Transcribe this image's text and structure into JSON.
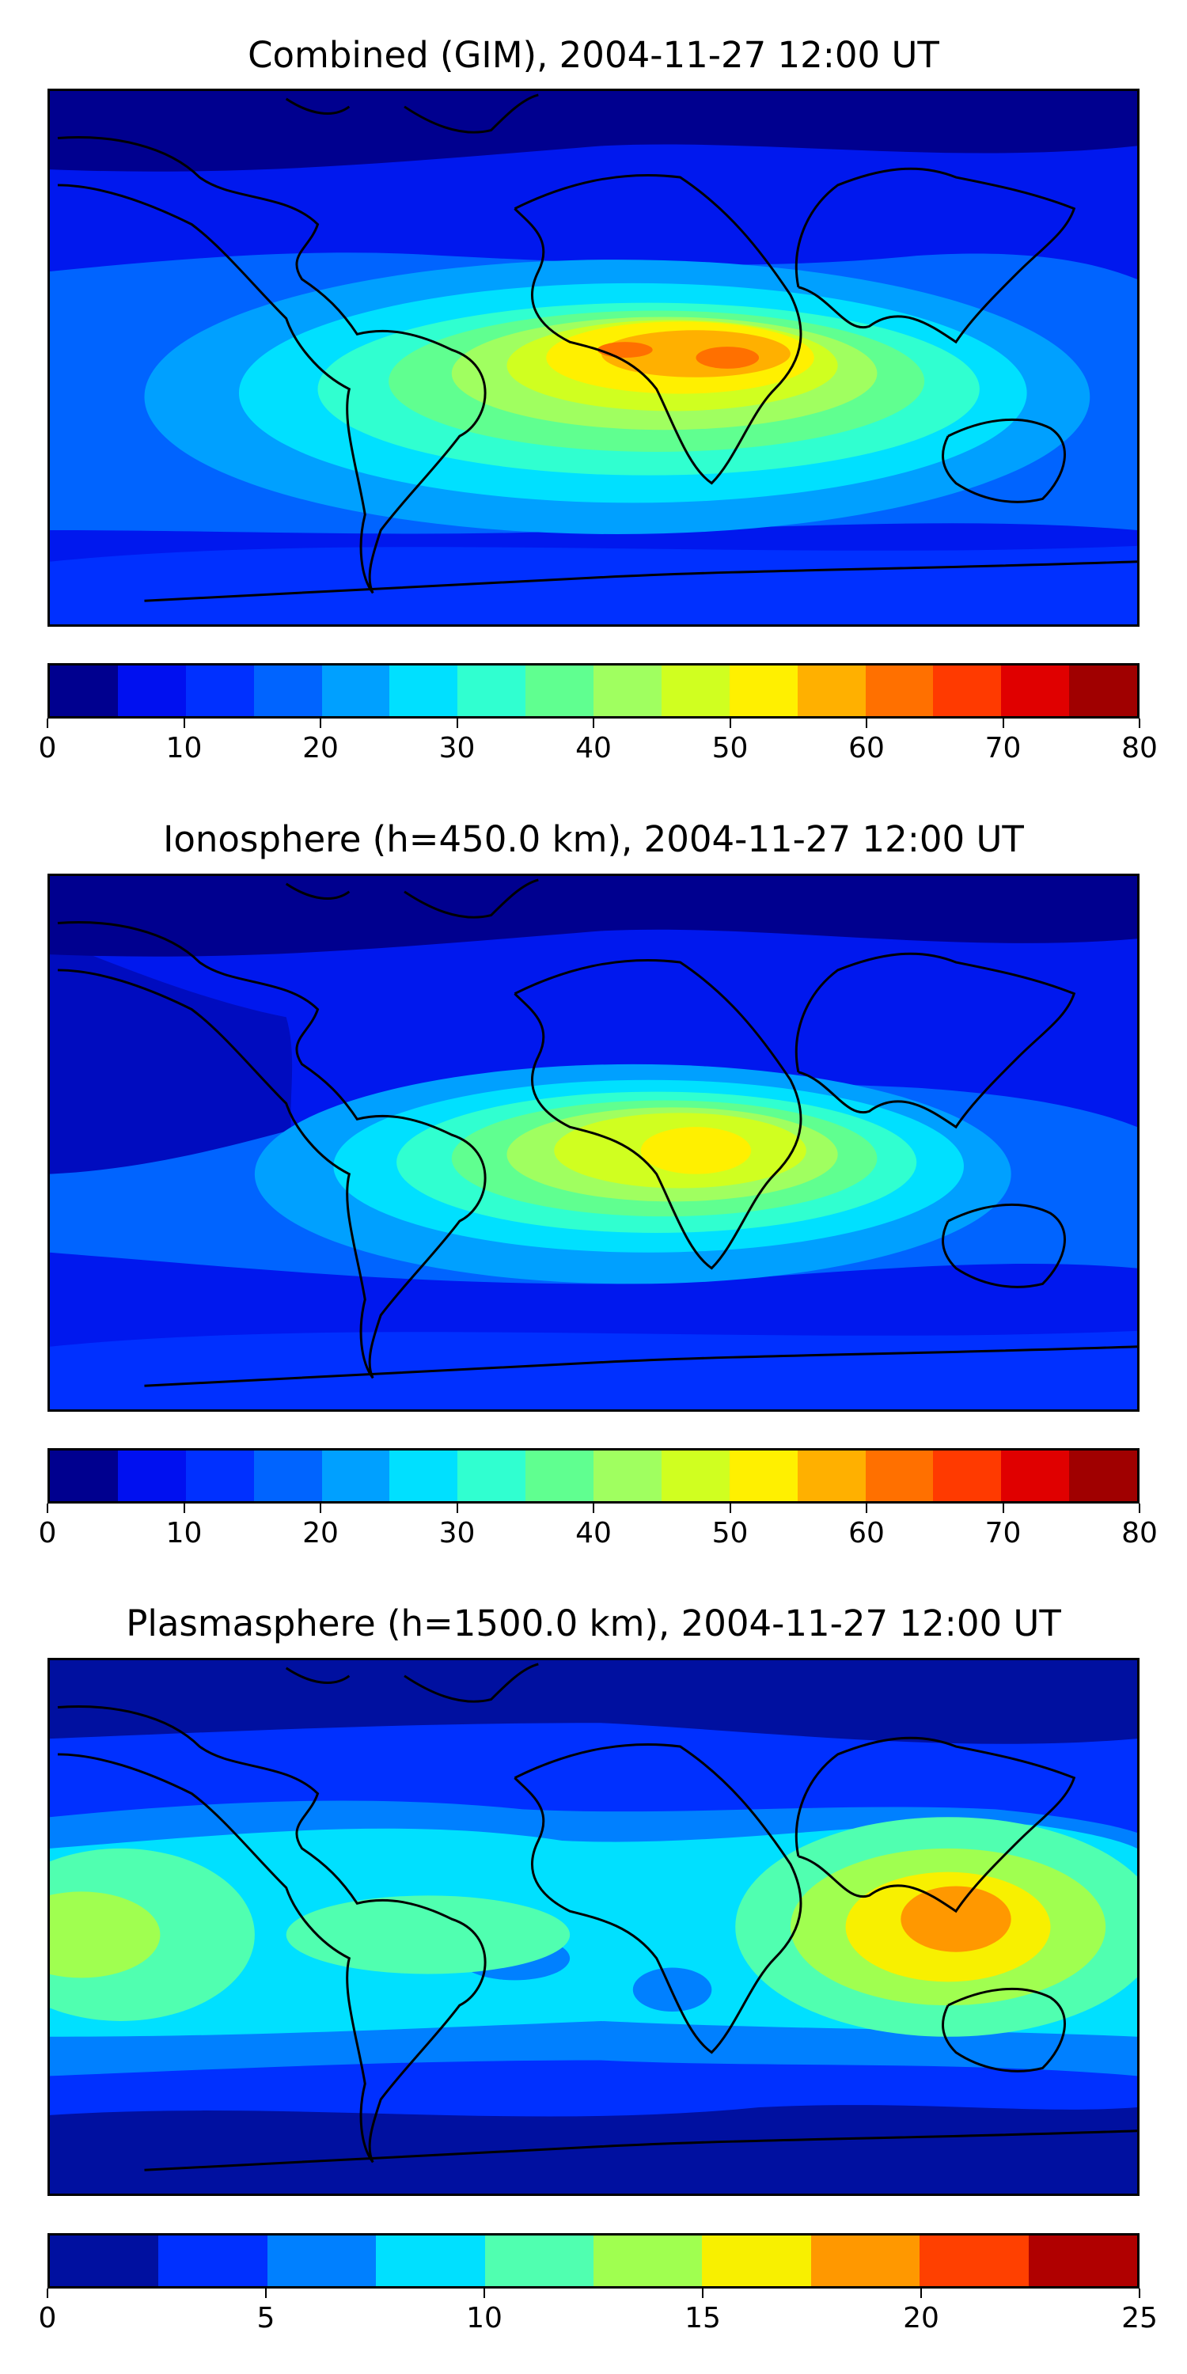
{
  "panels": [
    {
      "title": "Combined (GIM), 2004-11-27 12:00 UT",
      "colorbar": {
        "ticks": [
          "0",
          "10",
          "20",
          "30",
          "40",
          "50",
          "60",
          "70",
          "80"
        ],
        "colors": [
          "#00008f",
          "#0010f0",
          "#0030ff",
          "#0064ff",
          "#00a0ff",
          "#00e0ff",
          "#30ffd0",
          "#60ff90",
          "#a0ff60",
          "#d0ff20",
          "#fff000",
          "#ffb000",
          "#ff7000",
          "#ff3a00",
          "#e00000",
          "#a00000"
        ]
      }
    },
    {
      "title": "Ionosphere  (h=450.0 km), 2004-11-27 12:00 UT",
      "colorbar": {
        "ticks": [
          "0",
          "10",
          "20",
          "30",
          "40",
          "50",
          "60",
          "70",
          "80"
        ],
        "colors": [
          "#00008f",
          "#0010f0",
          "#0030ff",
          "#0064ff",
          "#00a0ff",
          "#00e0ff",
          "#30ffd0",
          "#60ff90",
          "#a0ff60",
          "#d0ff20",
          "#fff000",
          "#ffb000",
          "#ff7000",
          "#ff3a00",
          "#e00000",
          "#a00000"
        ]
      }
    },
    {
      "title": "Plasmasphere (h=1500.0 km), 2004-11-27 12:00 UT",
      "colorbar": {
        "ticks": [
          "0",
          "5",
          "10",
          "15",
          "20",
          "25"
        ],
        "colors": [
          "#0010a0",
          "#0030ff",
          "#0080ff",
          "#00e0ff",
          "#50ffb0",
          "#a0ff50",
          "#f8f000",
          "#ff9800",
          "#ff4000",
          "#b00000"
        ]
      }
    }
  ]
}
